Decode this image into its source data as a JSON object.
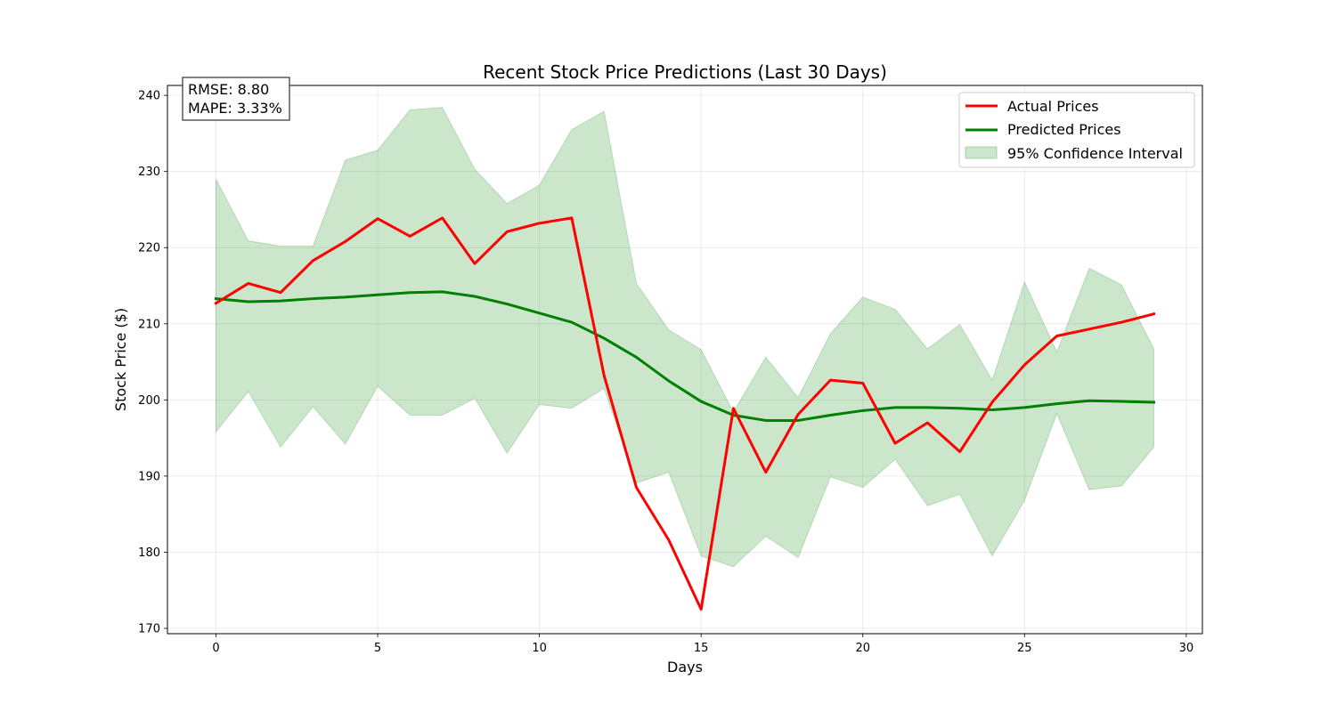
{
  "chart_data": {
    "type": "line",
    "title": "Recent Stock Price Predictions (Last 30 Days)",
    "xlabel": "Days",
    "ylabel": "Stock Price ($)",
    "xlim": [
      -1.5,
      30.5
    ],
    "ylim": [
      169.3,
      241.3
    ],
    "xticks": [
      0,
      5,
      10,
      15,
      20,
      25,
      30
    ],
    "yticks": [
      170,
      180,
      190,
      200,
      210,
      220,
      230,
      240
    ],
    "grid": true,
    "legend_position": "top-right",
    "x": [
      0,
      1,
      2,
      3,
      4,
      5,
      6,
      7,
      8,
      9,
      10,
      11,
      12,
      13,
      14,
      15,
      16,
      17,
      18,
      19,
      20,
      21,
      22,
      23,
      24,
      25,
      26,
      27,
      28,
      29
    ],
    "series": [
      {
        "name": "Actual Prices",
        "color": "#ff0000",
        "values": [
          212.7,
          215.3,
          214.1,
          218.3,
          220.8,
          223.8,
          221.5,
          223.9,
          217.9,
          222.1,
          223.2,
          223.9,
          203.2,
          188.5,
          181.6,
          172.5,
          198.9,
          190.5,
          198.1,
          202.6,
          202.2,
          194.3,
          197.0,
          193.2,
          199.7,
          204.6,
          208.4,
          209.3,
          210.2,
          211.3
        ]
      },
      {
        "name": "Predicted Prices",
        "color": "#008000",
        "values": [
          213.3,
          212.9,
          213.0,
          213.3,
          213.5,
          213.8,
          214.1,
          214.2,
          213.6,
          212.6,
          211.4,
          210.2,
          208.1,
          205.6,
          202.5,
          199.8,
          198.0,
          197.3,
          197.3,
          198.0,
          198.6,
          199.0,
          199.0,
          198.9,
          198.7,
          199.0,
          199.5,
          199.9,
          199.8,
          199.7
        ]
      }
    ],
    "confidence_interval": {
      "name": "95% Confidence Interval",
      "color": "#008000",
      "upper": [
        229.0,
        220.9,
        220.2,
        220.2,
        231.5,
        232.8,
        238.1,
        238.4,
        230.3,
        225.8,
        228.2,
        235.5,
        237.9,
        215.3,
        209.2,
        206.6,
        198.4,
        205.6,
        200.3,
        208.7,
        213.5,
        211.9,
        206.7,
        209.9,
        202.6,
        215.5,
        206.3,
        217.3,
        215.1,
        206.7
      ],
      "lower": [
        195.8,
        201.1,
        193.8,
        199.1,
        194.2,
        201.8,
        198.0,
        198.0,
        200.2,
        193.0,
        199.4,
        198.9,
        201.5,
        189.1,
        190.5,
        179.5,
        178.1,
        182.1,
        179.3,
        189.9,
        188.5,
        192.2,
        186.1,
        187.6,
        179.5,
        186.8,
        198.2,
        188.2,
        188.7,
        193.8
      ]
    },
    "annotation": {
      "rmse": "RMSE: 8.80",
      "mape": "MAPE: 3.33%"
    }
  }
}
